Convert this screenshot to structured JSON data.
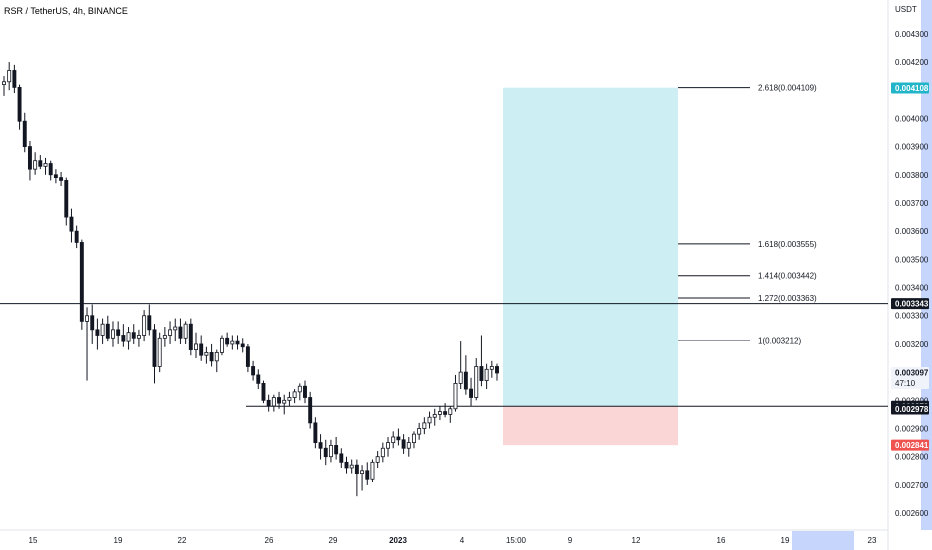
{
  "chart_data": {
    "type": "candlestick",
    "title": "RSR / TetherUS, 4h, BINANCE",
    "price_unit": "USDT",
    "y_ticks": [
      "0.004300",
      "0.004200",
      "0.004100",
      "0.004000",
      "0.003900",
      "0.003800",
      "0.003700",
      "0.003600",
      "0.003500",
      "0.003400",
      "0.003300",
      "0.003200",
      "0.003000",
      "0.002900",
      "0.002800",
      "0.002700",
      "0.002600"
    ],
    "ylim": [
      0.00254,
      0.00442
    ],
    "x_ticks": [
      "15",
      "19",
      "22",
      "26",
      "29",
      "2023",
      "4",
      "15:00",
      "9",
      "12",
      "16",
      "19",
      "23"
    ],
    "horizontal_lines": [
      {
        "price": 0.003343,
        "color": "#131722"
      },
      {
        "price": 0.002979,
        "color": "#131722"
      }
    ],
    "price_tags": [
      {
        "label": "0.004108",
        "price": 0.004108,
        "bg": "#22b5c9",
        "fg": "#ffffff"
      },
      {
        "label": "0.003343",
        "price": 0.003343,
        "bg": "#131722",
        "fg": "#ffffff"
      },
      {
        "label": "0.003097",
        "price": 0.003097,
        "bg": "#f0f3fa",
        "fg": "#131722",
        "sub": "47:10"
      },
      {
        "label": "0.002979",
        "price": 0.002979,
        "bg": "#131722",
        "fg": "#ffffff"
      },
      {
        "label": "0.002978",
        "price": 0.002969,
        "bg": "#131722",
        "fg": "#ffffff"
      },
      {
        "label": "0.002841",
        "price": 0.002841,
        "bg": "#ef5350",
        "fg": "#ffffff"
      }
    ],
    "fib_levels": [
      {
        "label": "2.618(0.004109)",
        "price": 0.004109,
        "color": "#131722"
      },
      {
        "label": "1.618(0.003555)",
        "price": 0.003555,
        "color": "#131722"
      },
      {
        "label": "1.414(0.003442)",
        "price": 0.003442,
        "color": "#131722"
      },
      {
        "label": "1.272(0.003363)",
        "price": 0.003363,
        "color": "#131722"
      },
      {
        "label": "1(0.003212)",
        "price": 0.003212,
        "color": "#9598a1"
      }
    ],
    "long_position": {
      "entry": 0.002979,
      "target": 0.004109,
      "stop": 0.002841,
      "target_color": "#cdeff3",
      "stop_color": "#fad7d6"
    },
    "candles": [
      [
        0.00412,
        0.00415,
        0.00408,
        0.00413
      ],
      [
        0.00413,
        0.0042,
        0.0041,
        0.00417
      ],
      [
        0.00417,
        0.00419,
        0.00409,
        0.00411
      ],
      [
        0.00411,
        0.00412,
        0.00396,
        0.00399
      ],
      [
        0.00399,
        0.00402,
        0.00388,
        0.0039
      ],
      [
        0.0039,
        0.00392,
        0.00378,
        0.00382
      ],
      [
        0.00382,
        0.00388,
        0.0038,
        0.00385
      ],
      [
        0.00385,
        0.00387,
        0.00382,
        0.00383
      ],
      [
        0.00383,
        0.00386,
        0.0038,
        0.00384
      ],
      [
        0.00384,
        0.00385,
        0.00378,
        0.0038
      ],
      [
        0.0038,
        0.00382,
        0.00377,
        0.00379
      ],
      [
        0.00379,
        0.00381,
        0.00376,
        0.00378
      ],
      [
        0.00378,
        0.00379,
        0.00362,
        0.00365
      ],
      [
        0.00365,
        0.00368,
        0.00356,
        0.0036
      ],
      [
        0.0036,
        0.00362,
        0.00354,
        0.00356
      ],
      [
        0.00356,
        0.00357,
        0.00325,
        0.00328
      ],
      [
        0.00328,
        0.00333,
        0.00307,
        0.0033
      ],
      [
        0.0033,
        0.00334,
        0.0032,
        0.00325
      ],
      [
        0.00325,
        0.00329,
        0.00318,
        0.00323
      ],
      [
        0.00323,
        0.00329,
        0.0032,
        0.00327
      ],
      [
        0.00327,
        0.0033,
        0.00321,
        0.00322
      ],
      [
        0.00322,
        0.00328,
        0.00319,
        0.00325
      ],
      [
        0.00325,
        0.00328,
        0.0032,
        0.00323
      ],
      [
        0.00323,
        0.00327,
        0.00319,
        0.00321
      ],
      [
        0.00321,
        0.00326,
        0.00318,
        0.00324
      ],
      [
        0.00324,
        0.00327,
        0.0032,
        0.00322
      ],
      [
        0.00322,
        0.00325,
        0.00319,
        0.00323
      ],
      [
        0.00323,
        0.00332,
        0.00321,
        0.0033
      ],
      [
        0.0033,
        0.00334,
        0.00323,
        0.00325
      ],
      [
        0.00325,
        0.00327,
        0.00306,
        0.00312
      ],
      [
        0.00312,
        0.00324,
        0.0031,
        0.00322
      ],
      [
        0.00322,
        0.00326,
        0.00319,
        0.00323
      ],
      [
        0.00323,
        0.00328,
        0.0032,
        0.00325
      ],
      [
        0.00325,
        0.00329,
        0.00321,
        0.00326
      ],
      [
        0.00326,
        0.00329,
        0.0032,
        0.00322
      ],
      [
        0.00322,
        0.00328,
        0.0032,
        0.00327
      ],
      [
        0.00327,
        0.00329,
        0.00316,
        0.00318
      ],
      [
        0.00318,
        0.00324,
        0.00315,
        0.0032
      ],
      [
        0.0032,
        0.00323,
        0.00314,
        0.00316
      ],
      [
        0.00316,
        0.00319,
        0.00313,
        0.00317
      ],
      [
        0.00317,
        0.0032,
        0.00312,
        0.00314
      ],
      [
        0.00314,
        0.00318,
        0.0031,
        0.00317
      ],
      [
        0.00317,
        0.00323,
        0.00316,
        0.00322
      ],
      [
        0.00322,
        0.00324,
        0.00319,
        0.0032
      ],
      [
        0.0032,
        0.00323,
        0.00318,
        0.00321
      ],
      [
        0.00321,
        0.00323,
        0.00318,
        0.0032
      ],
      [
        0.0032,
        0.00322,
        0.00317,
        0.00319
      ],
      [
        0.00319,
        0.0032,
        0.0031,
        0.00312
      ],
      [
        0.00312,
        0.00314,
        0.00307,
        0.00309
      ],
      [
        0.00309,
        0.00311,
        0.00304,
        0.00306
      ],
      [
        0.00306,
        0.00307,
        0.00299,
        0.003
      ],
      [
        0.003,
        0.00302,
        0.00296,
        0.00298
      ],
      [
        0.00298,
        0.00302,
        0.00296,
        0.00301
      ],
      [
        0.00301,
        0.00303,
        0.00297,
        0.00299
      ],
      [
        0.00299,
        0.00302,
        0.00295,
        0.003
      ],
      [
        0.003,
        0.00303,
        0.00298,
        0.00301
      ],
      [
        0.00301,
        0.00304,
        0.00299,
        0.00303
      ],
      [
        0.00303,
        0.00306,
        0.003,
        0.00305
      ],
      [
        0.00305,
        0.00307,
        0.00299,
        0.00301
      ],
      [
        0.00301,
        0.00303,
        0.0029,
        0.00292
      ],
      [
        0.00292,
        0.00294,
        0.00283,
        0.00285
      ],
      [
        0.00285,
        0.00288,
        0.00279,
        0.00283
      ],
      [
        0.00283,
        0.00286,
        0.00277,
        0.0028
      ],
      [
        0.0028,
        0.00286,
        0.00278,
        0.00284
      ],
      [
        0.00284,
        0.00287,
        0.00279,
        0.00281
      ],
      [
        0.00281,
        0.00283,
        0.00276,
        0.00278
      ],
      [
        0.00278,
        0.0028,
        0.00274,
        0.00276
      ],
      [
        0.00276,
        0.00279,
        0.00274,
        0.00277
      ],
      [
        0.00277,
        0.00279,
        0.00266,
        0.00274
      ],
      [
        0.00274,
        0.00277,
        0.00268,
        0.00275
      ],
      [
        0.00275,
        0.00278,
        0.0027,
        0.00272
      ],
      [
        0.00272,
        0.00279,
        0.00271,
        0.00278
      ],
      [
        0.00278,
        0.00282,
        0.00276,
        0.0028
      ],
      [
        0.0028,
        0.00285,
        0.00278,
        0.00283
      ],
      [
        0.00283,
        0.00287,
        0.0028,
        0.00285
      ],
      [
        0.00285,
        0.00289,
        0.00283,
        0.00287
      ],
      [
        0.00287,
        0.0029,
        0.00284,
        0.00286
      ],
      [
        0.00286,
        0.00288,
        0.00281,
        0.00283
      ],
      [
        0.00283,
        0.00287,
        0.0028,
        0.00285
      ],
      [
        0.00285,
        0.00289,
        0.00283,
        0.00288
      ],
      [
        0.00288,
        0.00292,
        0.00286,
        0.0029
      ],
      [
        0.0029,
        0.00294,
        0.00288,
        0.00292
      ],
      [
        0.00292,
        0.00296,
        0.0029,
        0.00294
      ],
      [
        0.00294,
        0.00297,
        0.00291,
        0.00295
      ],
      [
        0.00295,
        0.00298,
        0.00293,
        0.00296
      ],
      [
        0.00296,
        0.00299,
        0.00294,
        0.00295
      ],
      [
        0.00295,
        0.00298,
        0.00292,
        0.00297
      ],
      [
        0.00297,
        0.00309,
        0.00296,
        0.00306
      ],
      [
        0.00306,
        0.00321,
        0.00304,
        0.0031
      ],
      [
        0.0031,
        0.00316,
        0.00302,
        0.00304
      ],
      [
        0.00304,
        0.00308,
        0.00298,
        0.00301
      ],
      [
        0.00301,
        0.00315,
        0.003,
        0.00312
      ],
      [
        0.00312,
        0.00323,
        0.00305,
        0.00307
      ],
      [
        0.00307,
        0.00313,
        0.00304,
        0.00311
      ],
      [
        0.00311,
        0.00314,
        0.00308,
        0.00312
      ],
      [
        0.00312,
        0.00313,
        0.00307,
        0.003097
      ]
    ]
  }
}
